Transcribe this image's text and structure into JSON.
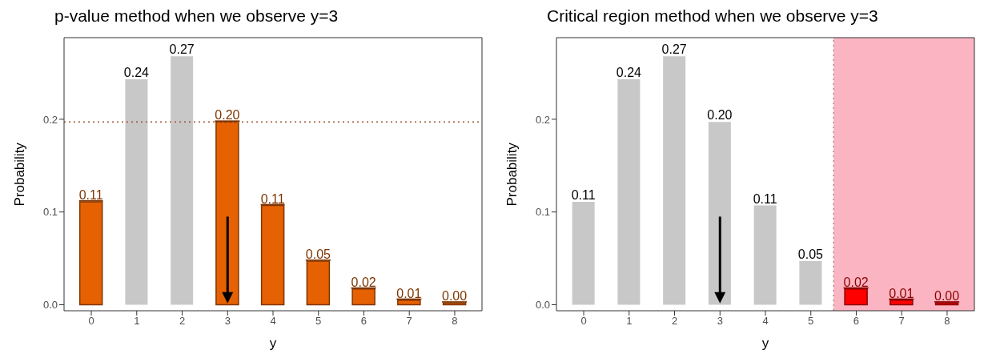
{
  "chart_data": [
    {
      "type": "bar",
      "title": "p-value method when we observe y=3",
      "xlabel": "y",
      "ylabel": "Probability",
      "x": [
        0,
        1,
        2,
        3,
        4,
        5,
        6,
        7,
        8
      ],
      "values": [
        0.111,
        0.243,
        0.268,
        0.197,
        0.107,
        0.047,
        0.017,
        0.005,
        0.002
      ],
      "colors": [
        "#e66101",
        "#c8c8c8",
        "#c8c8c8",
        "#e66101",
        "#e66101",
        "#e66101",
        "#e66101",
        "#e66101",
        "#e66101"
      ],
      "value_labels": [
        "0.11",
        "0.24",
        "0.27",
        "0.20",
        "0.11",
        "0.05",
        "0.02",
        "0.01",
        "0.00"
      ],
      "xlim": [
        -0.6,
        8.6
      ],
      "xticks": [
        0,
        1,
        2,
        3,
        4,
        5,
        6,
        7,
        8
      ],
      "ylim": [
        -0.0065,
        0.288
      ],
      "yticks": [
        {
          "value": 0,
          "label": "0.0"
        },
        {
          "value": 0.1,
          "label": "0.1"
        },
        {
          "value": 0.2,
          "label": "0.2"
        }
      ],
      "ref_lines": [
        {
          "axis": "y",
          "value": 0.197,
          "color": "#a0522d",
          "line_style": "dotted"
        }
      ],
      "grid": false,
      "legend": false
    },
    {
      "type": "bar",
      "title": "Critical region method when we observe y=3",
      "xlabel": "y",
      "ylabel": "Probability",
      "x": [
        0,
        1,
        2,
        3,
        4,
        5,
        6,
        7,
        8
      ],
      "values": [
        0.111,
        0.243,
        0.268,
        0.197,
        0.107,
        0.047,
        0.017,
        0.005,
        0.002
      ],
      "colors": [
        "#c8c8c8",
        "#c8c8c8",
        "#c8c8c8",
        "#c8c8c8",
        "#c8c8c8",
        "#c8c8c8",
        "#ff0000",
        "#ff0000",
        "#ff0000"
      ],
      "value_labels": [
        "0.11",
        "0.24",
        "0.27",
        "0.20",
        "0.11",
        "0.05",
        "0.02",
        "0.01",
        "0.00"
      ],
      "xlim": [
        -0.6,
        8.6
      ],
      "xticks": [
        0,
        1,
        2,
        3,
        4,
        5,
        6,
        7,
        8
      ],
      "ylim": [
        -0.0065,
        0.288
      ],
      "yticks": [
        {
          "value": 0,
          "label": "0.0"
        },
        {
          "value": 0.1,
          "label": "0.1"
        },
        {
          "value": 0.2,
          "label": "0.2"
        }
      ],
      "bands": [
        {
          "axis": "x",
          "from": 5.5,
          "to": 8.6,
          "color": "#fbb4c1"
        }
      ],
      "ref_lines": [
        {
          "axis": "x",
          "value": 5.5,
          "color": "#8a636a",
          "line_style": "dotted"
        }
      ],
      "grid": false,
      "legend": false
    }
  ]
}
